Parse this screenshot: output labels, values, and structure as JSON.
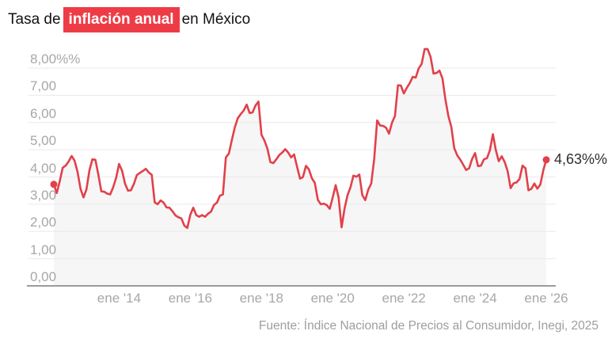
{
  "title": {
    "prefix": "Tasa de",
    "highlight": "inflación anual",
    "suffix": "en México"
  },
  "end_label": "4,63%%",
  "source": "Fuente: Índice Nacional de Precios al Consumidor, Inegi, 2025",
  "colors": {
    "red_highlight": "#ee3c46",
    "red_line": "#e2404a",
    "area_fill": "#f6f6f6",
    "gridline": "#eaeaea",
    "axis_line": "#9b9b9b",
    "axis_text": "#a7a7a7",
    "title_text": "#121212",
    "end_label_text": "#2e2e2e"
  },
  "chart_data": {
    "type": "area",
    "title": "Tasa de inflación anual en México",
    "unit": "%",
    "frequency": "monthly",
    "start_month": "mar 2012",
    "end_month": "ene 2026",
    "xlabel": "",
    "ylabel": "",
    "ylim": [
      0,
      8.7
    ],
    "grid": true,
    "legend": false,
    "last_value": 4.63,
    "first_value": 3.73,
    "y_ticks": [
      "8,00%%",
      "7,00",
      "6,00",
      "5,00",
      "4,00",
      "3,00",
      "2,00",
      "1,00",
      "0,00"
    ],
    "y_tick_values": [
      8,
      7,
      6,
      5,
      4,
      3,
      2,
      1,
      0
    ],
    "x_ticks": [
      {
        "label": "ene '14",
        "month_index": 22
      },
      {
        "label": "ene '16",
        "month_index": 46
      },
      {
        "label": "ene '18",
        "month_index": 70
      },
      {
        "label": "ene '20",
        "month_index": 94
      },
      {
        "label": "ene '22",
        "month_index": 118
      },
      {
        "label": "ene '24",
        "month_index": 142
      },
      {
        "label": "ene '26",
        "month_index": 166
      }
    ],
    "values": [
      3.73,
      3.41,
      3.85,
      4.34,
      4.42,
      4.57,
      4.77,
      4.6,
      4.18,
      3.57,
      3.25,
      3.55,
      4.25,
      4.65,
      4.63,
      4.09,
      3.47,
      3.46,
      3.39,
      3.36,
      3.62,
      3.97,
      4.48,
      4.23,
      3.76,
      3.5,
      3.51,
      3.75,
      4.07,
      4.15,
      4.22,
      4.3,
      4.17,
      4.08,
      3.07,
      3.0,
      3.14,
      3.06,
      2.88,
      2.87,
      2.74,
      2.59,
      2.52,
      2.48,
      2.21,
      2.13,
      2.61,
      2.87,
      2.6,
      2.54,
      2.6,
      2.54,
      2.65,
      2.73,
      2.97,
      3.06,
      3.31,
      3.36,
      4.72,
      4.86,
      5.35,
      5.82,
      6.16,
      6.31,
      6.44,
      6.66,
      6.35,
      6.37,
      6.63,
      6.77,
      5.55,
      5.34,
      5.04,
      4.55,
      4.51,
      4.65,
      4.81,
      4.9,
      5.02,
      4.9,
      4.72,
      4.83,
      4.37,
      3.94,
      4.0,
      4.41,
      4.28,
      3.95,
      3.78,
      3.16,
      3.0,
      3.02,
      2.97,
      2.83,
      3.24,
      3.7,
      3.25,
      2.15,
      2.84,
      3.33,
      3.62,
      4.05,
      4.01,
      4.09,
      3.33,
      3.15,
      3.54,
      3.76,
      4.67,
      6.08,
      5.89,
      5.88,
      5.81,
      5.59,
      6.0,
      6.24,
      7.37,
      7.36,
      7.07,
      7.28,
      7.45,
      7.68,
      7.65,
      7.99,
      8.15,
      8.7,
      8.7,
      8.41,
      7.8,
      7.82,
      7.91,
      7.62,
      6.85,
      6.25,
      5.84,
      5.06,
      4.79,
      4.64,
      4.45,
      4.26,
      4.32,
      4.66,
      4.88,
      4.4,
      4.42,
      4.65,
      4.69,
      4.98,
      5.57,
      4.99,
      4.58,
      4.76,
      4.55,
      4.21,
      3.59,
      3.77,
      3.8,
      3.93,
      4.42,
      4.32,
      3.51,
      3.57,
      3.76,
      3.57,
      3.72,
      4.25,
      4.63
    ]
  }
}
